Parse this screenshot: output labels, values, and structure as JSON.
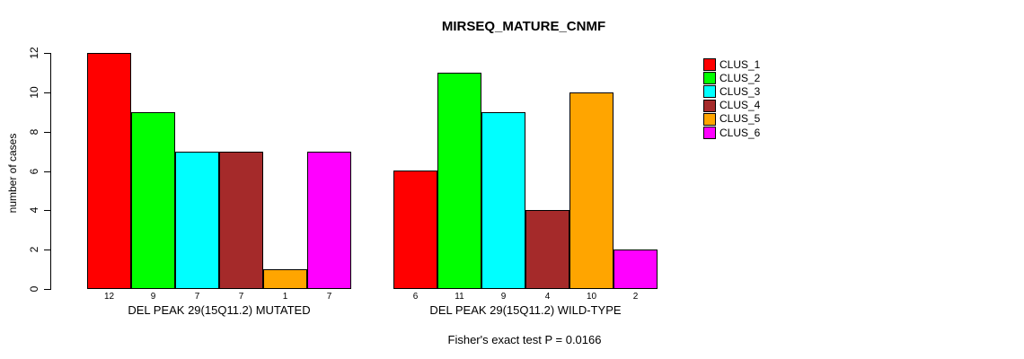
{
  "title": "MIRSEQ_MATURE_CNMF",
  "chart_data": {
    "type": "bar",
    "title": "MIRSEQ_MATURE_CNMF",
    "xlabel": "",
    "ylabel": "number of cases",
    "ylim": [
      0,
      12
    ],
    "yticks": [
      0,
      2,
      4,
      6,
      8,
      10,
      12
    ],
    "grid": false,
    "legend_position": "right-outside",
    "legend_entries": [
      "CLUS_1",
      "CLUS_2",
      "CLUS_3",
      "CLUS_4",
      "CLUS_5",
      "CLUS_6"
    ],
    "series_colors": [
      "#ff0000",
      "#00ff00",
      "#00ffff",
      "#a52a2a",
      "#ffa500",
      "#ff00ff"
    ],
    "groups": [
      {
        "label": "DEL PEAK 29(15Q11.2) MUTATED",
        "values": [
          12,
          9,
          7,
          7,
          1,
          7
        ],
        "bar_value_labels": [
          "12",
          "9",
          "7",
          "7",
          "1",
          "7"
        ]
      },
      {
        "label": "DEL PEAK 29(15Q11.2) WILD-TYPE",
        "values": [
          6,
          11,
          9,
          4,
          10,
          2
        ],
        "bar_value_labels": [
          "6",
          "11",
          "9",
          "4",
          "10",
          "2"
        ]
      }
    ],
    "annotation": "Fisher's exact test P = 0.0166"
  }
}
